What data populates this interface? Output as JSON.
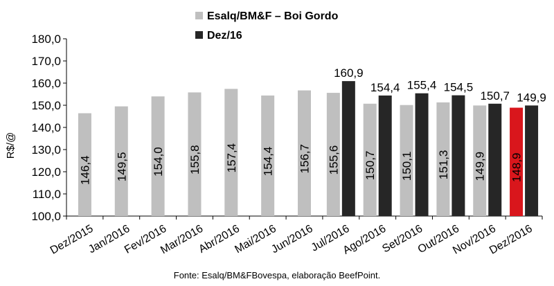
{
  "chart_data": {
    "type": "bar",
    "categories": [
      "Dez/2015",
      "Jan/2016",
      "Fev/2016",
      "Mar/2016",
      "Abr/2016",
      "Mai/2016",
      "Jun/2016",
      "Jul/2016",
      "Ago/2016",
      "Set/2016",
      "Out/2016",
      "Nov/2016",
      "Dez/2016"
    ],
    "series": [
      {
        "name": "Esalq/BM&F – Boi Gordo",
        "color": "#bfbfbf",
        "values": [
          146.4,
          149.5,
          154.0,
          155.8,
          157.4,
          154.4,
          156.7,
          155.6,
          150.7,
          150.1,
          151.3,
          149.9,
          148.9
        ],
        "labels": [
          "146,4",
          "149,5",
          "154,0",
          "155,8",
          "157,4",
          "154,4",
          "156,7",
          "155,6",
          "150,7",
          "150,1",
          "151,3",
          "149,9",
          "148,9"
        ]
      },
      {
        "name": "Dez/16",
        "color": "#262626",
        "values": [
          null,
          null,
          null,
          null,
          null,
          null,
          null,
          160.9,
          154.4,
          155.4,
          154.5,
          150.7,
          149.9
        ],
        "labels": [
          null,
          null,
          null,
          null,
          null,
          null,
          null,
          "160,9",
          "154,4",
          "155,4",
          "154,5",
          "150,7",
          "149,9"
        ]
      }
    ],
    "highlight": {
      "category": "Dez/2016",
      "series": 0,
      "color": "#d9161c"
    },
    "ylabel": "R$/@",
    "ylim": [
      100,
      180
    ],
    "yticks": [
      "100,0",
      "110,0",
      "120,0",
      "130,0",
      "140,0",
      "150,0",
      "160,0",
      "170,0",
      "180,0"
    ],
    "legend_position": "top",
    "grid": false
  },
  "source": "Fonte: Esalq/BM&FBovespa, elaboração BeefPoint."
}
